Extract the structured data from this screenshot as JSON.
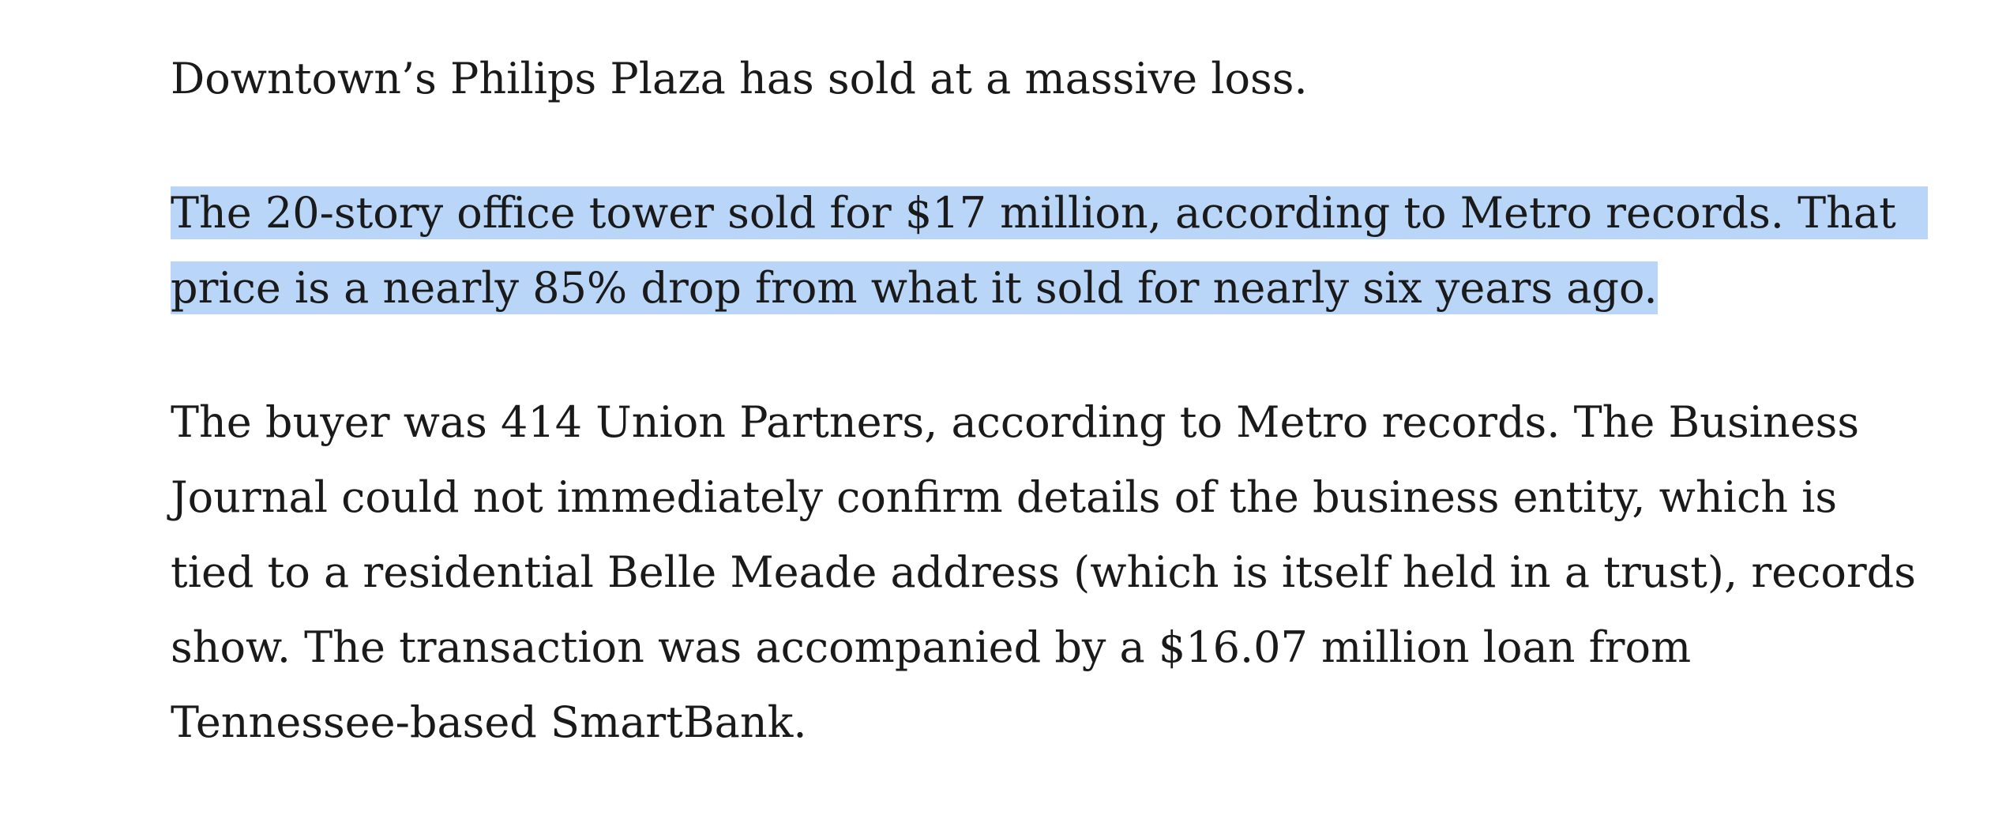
{
  "article": {
    "paragraph1": {
      "lines": [
        "Downtown’s Philips Plaza has sold at a massive loss."
      ]
    },
    "paragraph2": {
      "selected": true,
      "lines": [
        "The 20-story office tower sold for $17 million, according to Metro records. That",
        "price is a nearly 85% drop from what it sold for nearly six years ago."
      ]
    },
    "paragraph3": {
      "lines": [
        "The buyer was 414 Union Partners, according to Metro records. The Business",
        "Journal could not immediately confirm details of the business entity, which is",
        "tied to a residential Belle Meade address (which is itself held in a trust), records",
        "show. The transaction was accompanied by a $16.07 million loan from",
        "Tennessee-based SmartBank."
      ]
    }
  },
  "colors": {
    "text": "#1a1a1a",
    "selection_highlight": "#b9d6f8",
    "background": "#ffffff"
  }
}
